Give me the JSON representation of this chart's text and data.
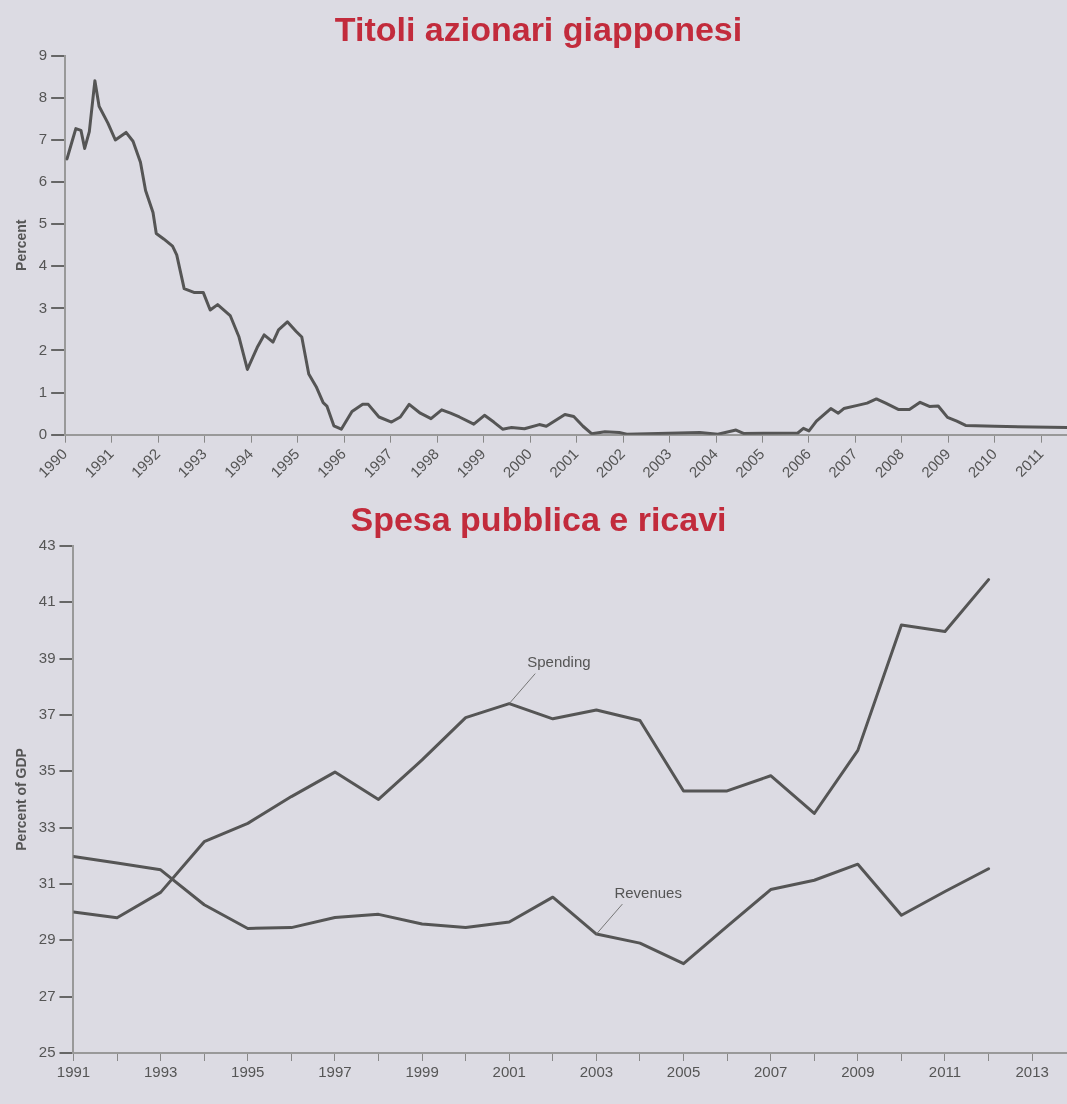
{
  "chart_data": [
    {
      "type": "line",
      "title": "Titoli azionari giapponesi",
      "ylabel": "Percent",
      "x": [
        1990.04,
        1990.15,
        1990.23,
        1990.34,
        1990.42,
        1990.52,
        1990.64,
        1990.73,
        1990.92,
        1991.08,
        1991.31,
        1991.46,
        1991.62,
        1991.73,
        1991.89,
        1991.96,
        1992.12,
        1992.31,
        1992.4,
        1992.56,
        1992.77,
        1992.97,
        1993.12,
        1993.28,
        1993.55,
        1993.74,
        1993.92,
        1994.13,
        1994.28,
        1994.47,
        1994.59,
        1994.78,
        1994.97,
        1995.09,
        1995.24,
        1995.4,
        1995.55,
        1995.63,
        1995.78,
        1995.94,
        1996.17,
        1996.4,
        1996.52,
        1996.75,
        1997.02,
        1997.21,
        1997.4,
        1997.64,
        1997.87,
        1998.1,
        1998.29,
        1998.48,
        1998.79,
        1999.02,
        1999.22,
        1999.41,
        1999.6,
        1999.88,
        2000.2,
        2000.35,
        2000.75,
        2000.94,
        2001.14,
        2001.33,
        2001.61,
        2001.92,
        2002.08,
        2003.65,
        2004.04,
        2004.43,
        2004.59,
        2005.76,
        2005.88,
        2006.0,
        2006.16,
        2006.47,
        2006.63,
        2006.75,
        2007.02,
        2007.25,
        2007.45,
        2007.65,
        2007.92,
        2008.16,
        2008.39,
        2008.59,
        2008.78,
        2008.98,
        2009.18,
        2009.37,
        2010.0,
        2011.55
      ],
      "series": [
        {
          "color": "#555555",
          "values": [
            6.55,
            6.97,
            7.27,
            7.23,
            6.8,
            7.2,
            8.41,
            7.8,
            7.4,
            7.0,
            7.18,
            6.97,
            6.47,
            5.8,
            5.28,
            4.78,
            4.65,
            4.48,
            4.27,
            3.47,
            3.38,
            3.38,
            2.96,
            3.09,
            2.83,
            2.32,
            1.55,
            2.07,
            2.37,
            2.2,
            2.49,
            2.68,
            2.45,
            2.32,
            1.44,
            1.14,
            0.76,
            0.68,
            0.21,
            0.13,
            0.55,
            0.72,
            0.72,
            0.42,
            0.3,
            0.42,
            0.72,
            0.51,
            0.38,
            0.59,
            0.51,
            0.42,
            0.25,
            0.46,
            0.3,
            0.13,
            0.17,
            0.14,
            0.24,
            0.2,
            0.48,
            0.43,
            0.2,
            0.02,
            0.07,
            0.05,
            0.01,
            0.05,
            0.01,
            0.11,
            0.03,
            0.04,
            0.15,
            0.09,
            0.32,
            0.62,
            0.51,
            0.62,
            0.69,
            0.75,
            0.85,
            0.75,
            0.6,
            0.6,
            0.77,
            0.67,
            0.68,
            0.41,
            0.32,
            0.22,
            0.2,
            0.17
          ]
        }
      ],
      "xlim": [
        1990,
        2011.55
      ],
      "ylim": [
        0,
        9
      ],
      "xticks": [
        1990,
        1991,
        1992,
        1993,
        1994,
        1995,
        1996,
        1997,
        1998,
        1999,
        2000,
        2001,
        2002,
        2003,
        2004,
        2005,
        2006,
        2007,
        2008,
        2009,
        2010,
        2011
      ],
      "yticks": [
        0,
        1,
        2,
        3,
        4,
        5,
        6,
        7,
        8,
        9
      ],
      "grid": false,
      "legend": false
    },
    {
      "type": "line",
      "title": "Spesa pubblica e ricavi",
      "ylabel": "Percent of GDP",
      "x": [
        1991,
        1992,
        1993,
        1994,
        1995,
        1996,
        1997,
        1998,
        1999,
        2000,
        2001,
        2002,
        2003,
        2004,
        2005,
        2006,
        2007,
        2008,
        2009,
        2010,
        2011,
        2012
      ],
      "series": [
        {
          "color": "#555555",
          "values": [
            30.0,
            29.8,
            30.7,
            32.5,
            33.15,
            34.1,
            34.97,
            34.0,
            35.4,
            36.9,
            37.4,
            36.86,
            37.17,
            36.8,
            34.3,
            34.3,
            34.84,
            33.5,
            35.74,
            40.19,
            39.96,
            41.8
          ]
        },
        {
          "color": "#555555",
          "values": [
            31.97,
            31.74,
            31.5,
            30.26,
            29.42,
            29.45,
            29.81,
            29.92,
            29.58,
            29.45,
            29.65,
            30.53,
            29.22,
            28.9,
            28.17,
            29.49,
            30.8,
            31.13,
            31.7,
            29.89,
            30.73,
            31.54
          ]
        }
      ],
      "annotations": [
        {
          "text": "Spending",
          "x": 2001,
          "y": 37.4
        },
        {
          "text": "Revenues",
          "x": 2003,
          "y": 29.22
        }
      ],
      "xlim": [
        1991,
        2013.8
      ],
      "ylim": [
        25,
        43
      ],
      "xticks": [
        1991,
        {
          "value": 1992,
          "label": null
        },
        1993,
        {
          "value": 1994,
          "label": null
        },
        1995,
        {
          "value": 1996,
          "label": null
        },
        1997,
        {
          "value": 1998,
          "label": null
        },
        1999,
        {
          "value": 2000,
          "label": null
        },
        2001,
        {
          "value": 2002,
          "label": null
        },
        2003,
        {
          "value": 2004,
          "label": null
        },
        2005,
        {
          "value": 2006,
          "label": null
        },
        2007,
        {
          "value": 2008,
          "label": null
        },
        2009,
        {
          "value": 2010,
          "label": null
        },
        2011,
        {
          "value": 2012,
          "label": null
        },
        2013
      ],
      "yticks": [
        25,
        27,
        29,
        31,
        33,
        35,
        37,
        39,
        41,
        43
      ],
      "grid": false,
      "legend": false
    }
  ]
}
